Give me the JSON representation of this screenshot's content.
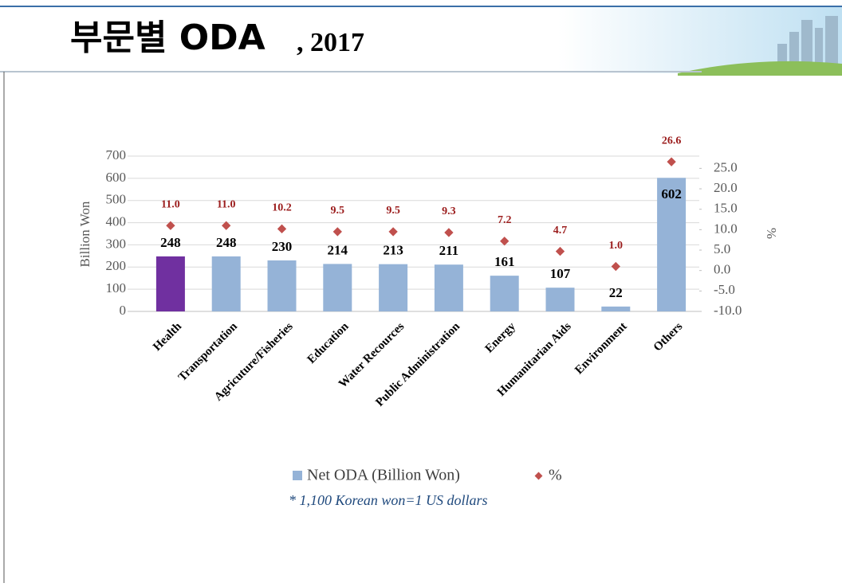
{
  "header": {
    "title": "부문별 ODA",
    "year": ", 2017"
  },
  "chart_data": {
    "type": "bar",
    "categories": [
      "Health",
      "Transportation",
      "Agricuture/Fisheries",
      "Education",
      "Water Recources",
      "Public Administration",
      "Energy",
      "Humanitarian Aids",
      "Environment",
      "Others"
    ],
    "series": [
      {
        "name": "Net ODA (Billion Won)",
        "color": "#95b3d7",
        "colors": [
          "#7030a0",
          "#95b3d7",
          "#95b3d7",
          "#95b3d7",
          "#95b3d7",
          "#95b3d7",
          "#95b3d7",
          "#95b3d7",
          "#95b3d7",
          "#95b3d7"
        ],
        "values": [
          248,
          248,
          230,
          214,
          213,
          211,
          161,
          107,
          22,
          602
        ]
      },
      {
        "name": "%",
        "color": "#c0504d",
        "axis": "y2",
        "values": [
          11.0,
          11.0,
          10.2,
          9.5,
          9.5,
          9.3,
          7.2,
          4.7,
          1.0,
          26.6
        ],
        "value_labels": [
          "11.0",
          "11.0",
          "10.2",
          "9.5",
          "9.5",
          "9.3",
          "7.2",
          "4.7",
          "1.0",
          "26.6"
        ]
      }
    ],
    "y_label": "Billion Won",
    "y2_label": "%",
    "ylim": [
      0,
      700
    ],
    "yticks": [
      0,
      100,
      200,
      300,
      400,
      500,
      600,
      700
    ],
    "y2lim": [
      -10,
      28
    ],
    "y2ticks": [
      {
        "value": -10,
        "label": "-10.0"
      },
      {
        "value": -5,
        "label": "-5.0"
      },
      {
        "value": 0,
        "label": "0.0"
      },
      {
        "value": 5,
        "label": "5.0"
      },
      {
        "value": 10,
        "label": "10.0"
      },
      {
        "value": 15,
        "label": "15.0"
      },
      {
        "value": 20,
        "label": "20.0"
      },
      {
        "value": 25,
        "label": "25.0"
      }
    ],
    "grid": true,
    "legend": "bottom",
    "footnote": "* 1,100 Korean won=1 US dollars"
  }
}
